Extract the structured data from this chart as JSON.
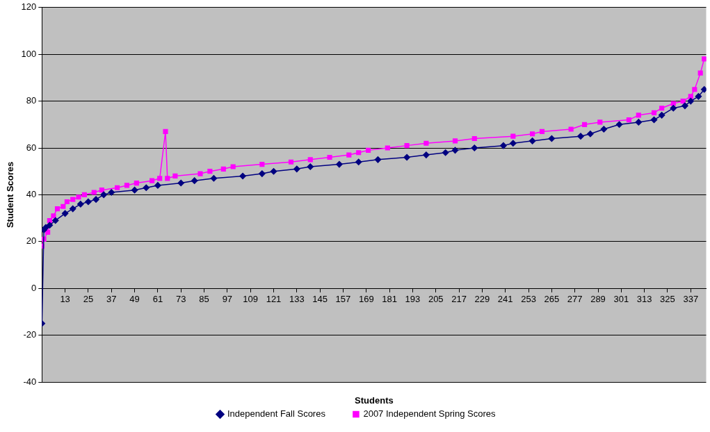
{
  "chart_data": {
    "type": "line",
    "xlabel": "Students",
    "ylabel": "Student Scores",
    "xlim": [
      1,
      345
    ],
    "xticks": [
      {
        "value": 1,
        "label": null
      },
      13,
      25,
      37,
      49,
      61,
      73,
      85,
      97,
      109,
      121,
      133,
      145,
      157,
      169,
      181,
      193,
      205,
      217,
      229,
      241,
      253,
      265,
      277,
      289,
      301,
      313,
      325,
      337
    ],
    "ylim": [
      -40,
      120
    ],
    "yticks": [
      -40,
      -20,
      0,
      20,
      40,
      60,
      80,
      100,
      120
    ],
    "grid": "y",
    "legend": "bottom",
    "series": [
      {
        "name": "Independent Fall Scores",
        "color": "#000080",
        "marker": "diamond",
        "x": [
          1,
          2,
          3,
          5,
          8,
          13,
          17,
          21,
          25,
          29,
          33,
          37,
          49,
          55,
          61,
          73,
          80,
          90,
          105,
          115,
          121,
          133,
          140,
          155,
          165,
          175,
          190,
          200,
          210,
          215,
          225,
          240,
          245,
          255,
          265,
          280,
          285,
          292,
          300,
          310,
          318,
          322,
          328,
          334,
          337,
          341,
          344
        ],
        "values": [
          -15,
          25,
          26,
          27,
          29,
          32,
          34,
          36,
          37,
          38,
          40,
          41,
          42,
          43,
          44,
          45,
          46,
          47,
          48,
          49,
          50,
          51,
          52,
          53,
          54,
          55,
          56,
          57,
          58,
          59,
          60,
          61,
          62,
          63,
          64,
          65,
          66,
          68,
          70,
          71,
          72,
          74,
          77,
          78,
          80,
          82,
          85
        ]
      },
      {
        "name": "2007 Independent Spring Scores",
        "color": "#ff00ff",
        "marker": "square",
        "x": [
          1,
          2,
          4,
          5,
          7,
          9,
          12,
          14,
          17,
          20,
          23,
          28,
          32,
          40,
          45,
          50,
          58,
          62,
          65,
          66,
          70,
          83,
          88,
          95,
          100,
          115,
          130,
          140,
          150,
          160,
          165,
          170,
          180,
          190,
          200,
          215,
          225,
          245,
          255,
          260,
          275,
          282,
          290,
          305,
          310,
          318,
          322,
          328,
          333,
          337,
          339,
          342,
          344
        ],
        "values": [
          18,
          21,
          24,
          29,
          31,
          34,
          35,
          37,
          38,
          39,
          40,
          41,
          42,
          43,
          44,
          45,
          46,
          47,
          67,
          47,
          48,
          49,
          50,
          51,
          52,
          53,
          54,
          55,
          56,
          57,
          58,
          59,
          60,
          61,
          62,
          63,
          64,
          65,
          66,
          67,
          68,
          70,
          71,
          72,
          74,
          75,
          77,
          79,
          80,
          82,
          85,
          92,
          98
        ]
      }
    ]
  }
}
